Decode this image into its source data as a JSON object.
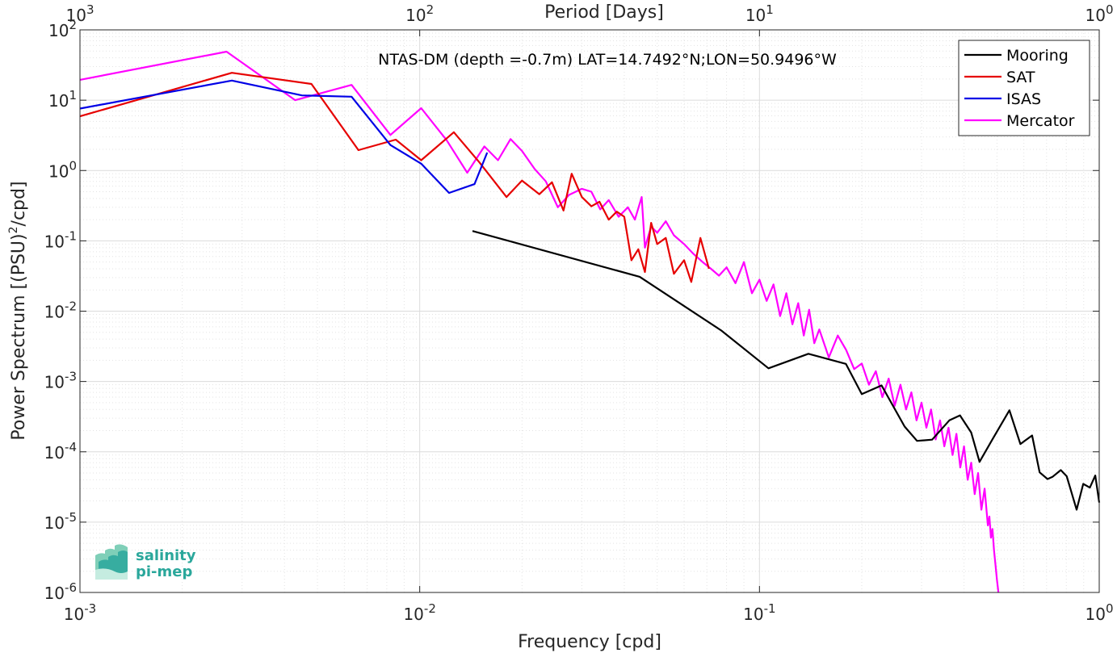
{
  "chart_data": {
    "type": "line",
    "title": "NTAS-DM (depth =-0.7m) LAT=14.7492°N;LON=50.9496°W",
    "xlabel": "Frequency [cpd]",
    "ylabel": "Power Spectrum [(PSU)^2/cpd]",
    "top_xlabel": "Period [Days]",
    "xscale": "log",
    "yscale": "log",
    "xlim": [
      0.001,
      1
    ],
    "ylim": [
      1e-06,
      100
    ],
    "x_ticks": [
      {
        "value": 0.001,
        "base": "10",
        "exp": "-3"
      },
      {
        "value": 0.01,
        "base": "10",
        "exp": "-2"
      },
      {
        "value": 0.1,
        "base": "10",
        "exp": "-1"
      },
      {
        "value": 1,
        "base": "10",
        "exp": "0"
      }
    ],
    "y_ticks": [
      {
        "value": 1e-06,
        "base": "10",
        "exp": "-6"
      },
      {
        "value": 1e-05,
        "base": "10",
        "exp": "-5"
      },
      {
        "value": 0.0001,
        "base": "10",
        "exp": "-4"
      },
      {
        "value": 0.001,
        "base": "10",
        "exp": "-3"
      },
      {
        "value": 0.01,
        "base": "10",
        "exp": "-2"
      },
      {
        "value": 0.1,
        "base": "10",
        "exp": "-1"
      },
      {
        "value": 1,
        "base": "10",
        "exp": "0"
      },
      {
        "value": 10,
        "base": "10",
        "exp": "1"
      },
      {
        "value": 100,
        "base": "10",
        "exp": "2"
      }
    ],
    "top_ticks": [
      {
        "frequency": 0.001,
        "base": "10",
        "exp": "3"
      },
      {
        "frequency": 0.01,
        "base": "10",
        "exp": "2"
      },
      {
        "frequency": 0.1,
        "base": "10",
        "exp": "1"
      },
      {
        "frequency": 1,
        "base": "10",
        "exp": "0"
      }
    ],
    "grid": true,
    "legend_position": "top-right",
    "series": [
      {
        "name": "Mooring",
        "color": "#000000",
        "x": [
          0.0143,
          0.0444,
          0.0772,
          0.1063,
          0.1393,
          0.1796,
          0.2,
          0.2287,
          0.2674,
          0.2909,
          0.3223,
          0.362,
          0.3892,
          0.42,
          0.4443,
          0.4846,
          0.5441,
          0.5861,
          0.6346,
          0.6676,
          0.7046,
          0.7283,
          0.7705,
          0.802,
          0.8207,
          0.8578,
          0.8973,
          0.9387,
          0.9735,
          1.0
        ],
        "y": [
          0.138,
          0.0308,
          0.0053,
          0.00154,
          0.00248,
          0.00178,
          0.00066,
          0.00088,
          0.000229,
          0.000143,
          0.000149,
          0.00028,
          0.00033,
          0.000188,
          7.2e-05,
          0.00015,
          0.00039,
          0.000129,
          0.000171,
          5.1e-05,
          4.1e-05,
          4.4e-05,
          5.5e-05,
          4.5e-05,
          3.1e-05,
          1.5e-05,
          3.5e-05,
          3.1e-05,
          4.6e-05,
          1.9e-05
        ]
      },
      {
        "name": "SAT",
        "color": "#e60000",
        "x": [
          0.001,
          0.0028,
          0.0048,
          0.0066,
          0.0085,
          0.0101,
          0.0126,
          0.015,
          0.018,
          0.02,
          0.0225,
          0.0245,
          0.0265,
          0.028,
          0.03,
          0.032,
          0.0338,
          0.036,
          0.038,
          0.04,
          0.042,
          0.044,
          0.046,
          0.048,
          0.05,
          0.053,
          0.056,
          0.06,
          0.063,
          0.067,
          0.071
        ],
        "y": [
          5.9,
          24.5,
          17.0,
          1.95,
          2.75,
          1.4,
          3.5,
          1.3,
          0.42,
          0.72,
          0.46,
          0.68,
          0.27,
          0.9,
          0.42,
          0.31,
          0.36,
          0.2,
          0.26,
          0.22,
          0.053,
          0.076,
          0.036,
          0.18,
          0.09,
          0.11,
          0.034,
          0.053,
          0.026,
          0.11,
          0.04
        ]
      },
      {
        "name": "ISAS",
        "color": "#0000e6",
        "x": [
          0.001,
          0.0028,
          0.0045,
          0.0063,
          0.0082,
          0.0101,
          0.0122,
          0.0145,
          0.0158
        ],
        "y": [
          7.6,
          19.0,
          11.7,
          11.2,
          2.3,
          1.25,
          0.48,
          0.64,
          1.8
        ]
      },
      {
        "name": "Mercator",
        "color": "#ff00ff",
        "x": [
          0.001,
          0.0027,
          0.0043,
          0.0063,
          0.0082,
          0.0101,
          0.012,
          0.0138,
          0.0155,
          0.017,
          0.0185,
          0.02,
          0.0218,
          0.0235,
          0.0255,
          0.0275,
          0.03,
          0.032,
          0.034,
          0.036,
          0.0385,
          0.041,
          0.043,
          0.045,
          0.046,
          0.048,
          0.05,
          0.053,
          0.056,
          0.06,
          0.064,
          0.068,
          0.072,
          0.076,
          0.08,
          0.085,
          0.09,
          0.095,
          0.1,
          0.105,
          0.11,
          0.115,
          0.12,
          0.125,
          0.13,
          0.135,
          0.14,
          0.145,
          0.15,
          0.16,
          0.17,
          0.18,
          0.19,
          0.2,
          0.21,
          0.22,
          0.23,
          0.24,
          0.25,
          0.26,
          0.27,
          0.28,
          0.29,
          0.3,
          0.31,
          0.32,
          0.33,
          0.34,
          0.35,
          0.36,
          0.37,
          0.38,
          0.39,
          0.4,
          0.41,
          0.42,
          0.43,
          0.44,
          0.45,
          0.46,
          0.47,
          0.475,
          0.48,
          0.485,
          0.49,
          0.495,
          0.5,
          0.505
        ],
        "y": [
          19.5,
          49.0,
          10.0,
          16.5,
          3.2,
          7.7,
          2.7,
          0.93,
          2.2,
          1.4,
          2.8,
          1.9,
          1.05,
          0.7,
          0.3,
          0.45,
          0.55,
          0.5,
          0.28,
          0.38,
          0.22,
          0.3,
          0.2,
          0.42,
          0.08,
          0.16,
          0.13,
          0.19,
          0.12,
          0.09,
          0.065,
          0.05,
          0.04,
          0.032,
          0.042,
          0.025,
          0.05,
          0.018,
          0.028,
          0.014,
          0.024,
          0.0085,
          0.018,
          0.0065,
          0.013,
          0.0045,
          0.0105,
          0.0035,
          0.0055,
          0.0022,
          0.0045,
          0.0028,
          0.0015,
          0.0018,
          0.0009,
          0.0014,
          0.0006,
          0.0011,
          0.00045,
          0.0009,
          0.0004,
          0.0007,
          0.00028,
          0.0005,
          0.00022,
          0.0004,
          0.00015,
          0.00028,
          0.00012,
          0.00022,
          9e-05,
          0.00018,
          6e-05,
          0.00012,
          4e-05,
          7e-05,
          2.5e-05,
          5e-05,
          1.5e-05,
          3e-05,
          9e-06,
          1.2e-05,
          6e-06,
          8e-06,
          4e-06,
          2.5e-06,
          1.5e-06,
          1e-06
        ]
      }
    ]
  },
  "logo": {
    "line1": "salinity",
    "line2": "pi-mep"
  }
}
